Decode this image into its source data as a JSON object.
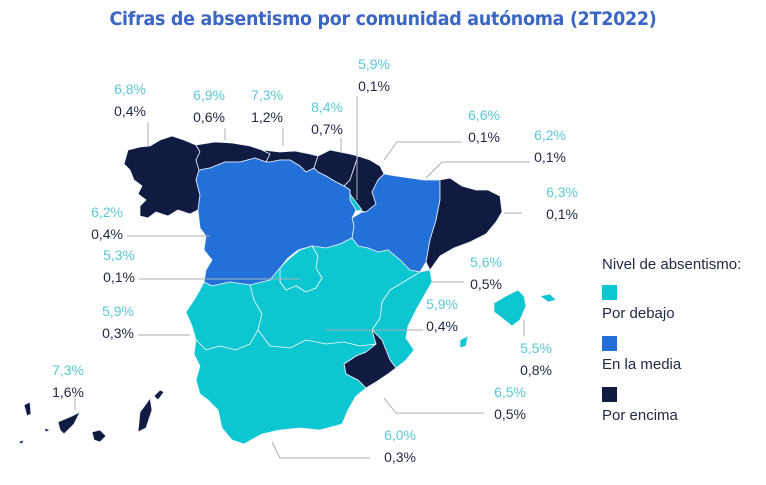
{
  "title": "Cifras de absentismo por comunidad autónoma (2T2022)",
  "colors": {
    "title": "#3a66c4",
    "below": "#0cc6d1",
    "average": "#2370d9",
    "above": "#111b42",
    "pct_text": "#5bc8d4",
    "var_text": "#222a44",
    "leader": "#a8adb7"
  },
  "legend": {
    "title": "Nivel de absentismo:",
    "items": [
      {
        "key": "below",
        "label": "Por debajo",
        "color": "#0cc6d1"
      },
      {
        "key": "average",
        "label": "En la media",
        "color": "#2370d9"
      },
      {
        "key": "above",
        "label": "Por encima",
        "color": "#111b42"
      }
    ]
  },
  "regions": [
    {
      "id": "galicia",
      "rate": "6,8%",
      "change": "0,4%",
      "level": "above"
    },
    {
      "id": "asturias",
      "rate": "6,9%",
      "change": "0,6%",
      "level": "above"
    },
    {
      "id": "cantabria",
      "rate": "7,3%",
      "change": "1,2%",
      "level": "above"
    },
    {
      "id": "pais-vasco",
      "rate": "8,4%",
      "change": "0,7%",
      "level": "above"
    },
    {
      "id": "navarra",
      "rate": "5,9%",
      "change": "0,1%",
      "level": "above"
    },
    {
      "id": "la-rioja",
      "rate": "6,6%",
      "change": "0,1%",
      "level": "below"
    },
    {
      "id": "aragon",
      "rate": "6,2%",
      "change": "0,1%",
      "level": "average"
    },
    {
      "id": "cataluna",
      "rate": "6,3%",
      "change": "0,1%",
      "level": "above"
    },
    {
      "id": "castilla-y-leon",
      "rate": "6,2%",
      "change": "0,4%",
      "level": "average"
    },
    {
      "id": "madrid",
      "rate": "5,3%",
      "change": "0,1%",
      "level": "below"
    },
    {
      "id": "extremadura",
      "rate": "5,9%",
      "change": "0,3%",
      "level": "below"
    },
    {
      "id": "comunidad-valenciana",
      "rate": "5,6%",
      "change": "0,5%",
      "level": "below"
    },
    {
      "id": "castilla-la-mancha",
      "rate": "5,9%",
      "change": "0,4%",
      "level": "below"
    },
    {
      "id": "baleares",
      "rate": "5,5%",
      "change": "0,8%",
      "level": "below"
    },
    {
      "id": "murcia",
      "rate": "6,5%",
      "change": "0,5%",
      "level": "above"
    },
    {
      "id": "andalucia",
      "rate": "6,0%",
      "change": "0,3%",
      "level": "below"
    },
    {
      "id": "canarias",
      "rate": "7,3%",
      "change": "1,6%",
      "level": "above"
    }
  ]
}
